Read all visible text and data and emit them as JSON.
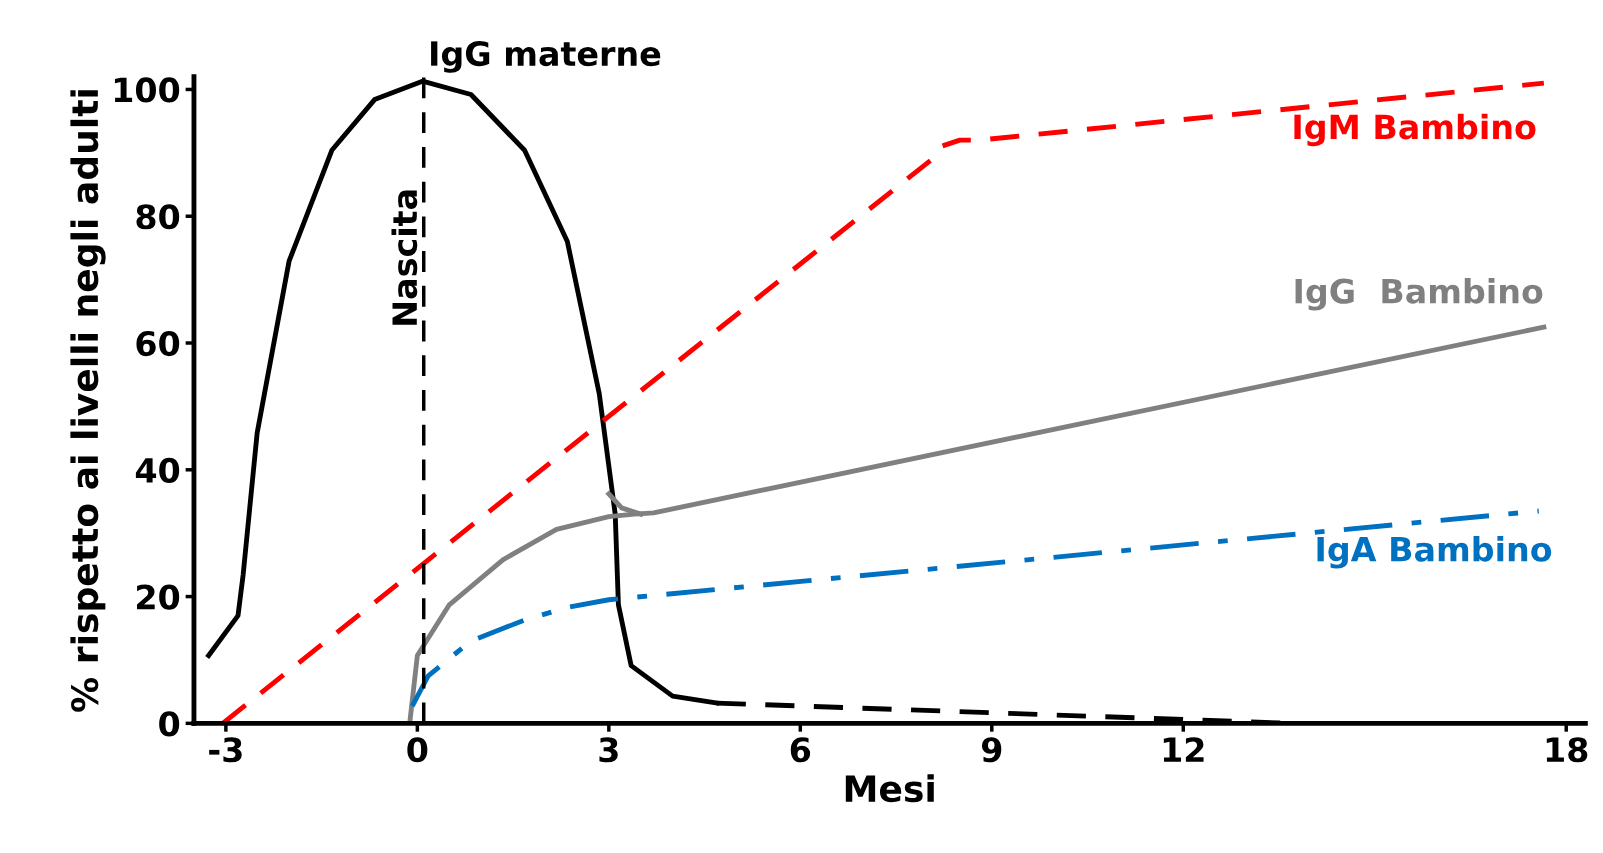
{
  "chart_data": {
    "type": "line",
    "xlabel": "Mesi",
    "ylabel": "% rispetto ai livelli negli adulti",
    "xlim": [
      -3.5,
      18.3
    ],
    "ylim": [
      0,
      102
    ],
    "xticks": [
      -3,
      0,
      3,
      6,
      9,
      12,
      18
    ],
    "yticks": [
      0,
      20,
      40,
      60,
      80,
      100
    ],
    "grid": false,
    "legend": false,
    "marker": "none",
    "series": [
      {
        "name": "IgG materne",
        "color": "#000000",
        "line_style": "solid",
        "x": [
          -3.27,
          -2.81,
          -2.73,
          -2.51,
          -2.01,
          -1.34,
          -0.67,
          0.08,
          0.84,
          1.68,
          2.35,
          2.85,
          3.1,
          3.15,
          3.35,
          4.0,
          4.69
        ],
        "values": [
          10.7,
          17,
          23.4,
          45.8,
          72.9,
          90.4,
          98.4,
          101.3,
          99.2,
          90.4,
          76,
          52,
          33,
          18.7,
          9.1,
          4.3,
          3.2
        ]
      },
      {
        "color": "#000000",
        "line_style": "dashed",
        "x": [
          4.69,
          13.7
        ],
        "values": [
          3.2,
          0
        ]
      },
      {
        "name": "IgM Bambino",
        "color": "#ff0000",
        "line_style": "dashed",
        "x": [
          -3.05,
          8.04,
          8.2,
          8.5,
          8.8,
          17.65
        ],
        "values": [
          0,
          88.8,
          91,
          92,
          92,
          101
        ]
      },
      {
        "name": "IgG  Bambino",
        "color": "#808080",
        "line_style": "solid",
        "x": [
          -0.12,
          0,
          0.5,
          1.34,
          2.18,
          3.0,
          3.4,
          3.7,
          17.65
        ],
        "values": [
          0,
          10.7,
          18.7,
          25.8,
          30.6,
          32.6,
          33,
          33.2,
          62.5
        ]
      },
      {
        "color": "#808080",
        "line_style": "solid",
        "x": [
          3.0,
          3.2,
          3.5
        ],
        "values": [
          36.2,
          34,
          33
        ]
      },
      {
        "name": "IgA Bambino",
        "color": "#0070c0",
        "line_style": "dashdot",
        "x": [
          -0.08,
          0.17,
          0.84,
          1.68,
          2.35,
          3.0,
          17.57
        ],
        "values": [
          2.7,
          7.5,
          13,
          16.3,
          18.3,
          19.5,
          33.5
        ]
      }
    ],
    "ref_lines": [
      {
        "axis": "x",
        "value": 0.1,
        "label": "Nascita",
        "color": "#000000",
        "line_style": "dashed"
      }
    ]
  }
}
